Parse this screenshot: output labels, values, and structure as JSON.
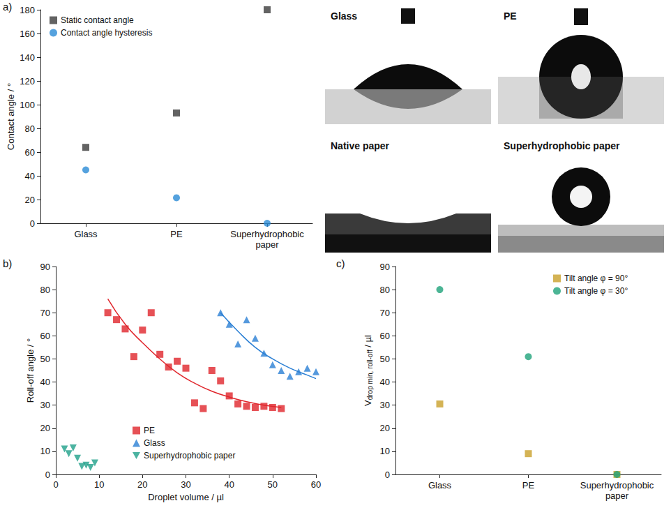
{
  "chart_data": [
    {
      "type": "scatter",
      "panel": "a)",
      "categories": [
        "Glass",
        "PE",
        "Superhydrophobic paper"
      ],
      "y_label": "Contact angle / °",
      "ylim": [
        0,
        180
      ],
      "yticks": [
        0,
        20,
        40,
        60,
        80,
        100,
        120,
        140,
        160,
        180
      ],
      "legend": "top-left",
      "series": [
        {
          "name": "Static contact angle",
          "color": "#3c3c3c",
          "marker": "square",
          "values": [
            64,
            93,
            180
          ]
        },
        {
          "name": "Contact angle hysteresis",
          "color": "#2a8bd6",
          "marker": "circle",
          "values": [
            45,
            21.5,
            0
          ]
        }
      ]
    },
    {
      "type": "scatter",
      "panel": "b)",
      "x_label": "Droplet volume / µl",
      "y_label": "Roll-off angle / °",
      "xlim": [
        0,
        60
      ],
      "xticks": [
        0,
        10,
        20,
        30,
        40,
        50,
        60
      ],
      "ylim": [
        0,
        90
      ],
      "yticks": [
        0,
        10,
        20,
        30,
        40,
        50,
        60,
        70,
        80,
        90
      ],
      "legend": "bottom",
      "series": [
        {
          "name": "PE",
          "color": "#e0262c",
          "marker": "square",
          "x": [
            12,
            14,
            16,
            18,
            20,
            22,
            24,
            26,
            28,
            30,
            32,
            34,
            36,
            38,
            40,
            42,
            44,
            46,
            48,
            50,
            52
          ],
          "values": [
            70,
            67,
            63,
            51,
            62.5,
            70,
            52,
            46.5,
            49,
            46,
            31,
            28.5,
            45,
            40.5,
            34,
            30.5,
            29.5,
            29,
            29.5,
            29,
            28.5
          ],
          "fit": {
            "x": [
              12,
              16,
              20,
              24,
              28,
              32,
              36,
              40,
              44,
              48,
              52
            ],
            "values": [
              76,
              65,
              57,
              50,
              44,
              39.5,
              36,
              33.5,
              31.5,
              30,
              29
            ]
          }
        },
        {
          "name": "Glass",
          "color": "#2a7fd4",
          "marker": "triangle",
          "x": [
            38,
            40,
            42,
            44,
            46,
            48,
            50,
            52,
            54,
            56,
            58,
            60
          ],
          "values": [
            70,
            65,
            56.5,
            67,
            59,
            52.5,
            47.5,
            45,
            42.5,
            44.5,
            46,
            44.5
          ],
          "fit": {
            "x": [
              38,
              42,
              46,
              50,
              54,
              58,
              60
            ],
            "values": [
              70,
              62,
              55,
              50,
              46,
              43,
              41.5
            ]
          }
        },
        {
          "name": "Superhydrophobic paper",
          "color": "#1fa08a",
          "marker": "triangle_down",
          "x": [
            2,
            3,
            4,
            5,
            6,
            7,
            8,
            9
          ],
          "values": [
            11,
            9,
            11.5,
            7,
            3.5,
            4,
            3,
            5
          ]
        }
      ]
    },
    {
      "type": "scatter",
      "panel": "c)",
      "categories": [
        "Glass",
        "PE",
        "Superhydrophobic paper"
      ],
      "y_label": "Vdrop min, roll-off / µl",
      "ylim": [
        0,
        90
      ],
      "yticks": [
        0,
        10,
        20,
        30,
        40,
        50,
        60,
        70,
        80,
        90
      ],
      "legend": "top-right",
      "series": [
        {
          "name": "Tilt angle φ = 90°",
          "color": "#c9a02a",
          "marker": "square",
          "values": [
            30.5,
            9,
            0
          ]
        },
        {
          "name": "Tilt angle φ = 30°",
          "color": "#1fa37a",
          "marker": "circle",
          "values": [
            80,
            51,
            0
          ]
        }
      ]
    }
  ],
  "images": [
    {
      "label": "Glass"
    },
    {
      "label": "PE"
    },
    {
      "label": "Native paper"
    },
    {
      "label": "Superhydrophobic paper"
    }
  ]
}
